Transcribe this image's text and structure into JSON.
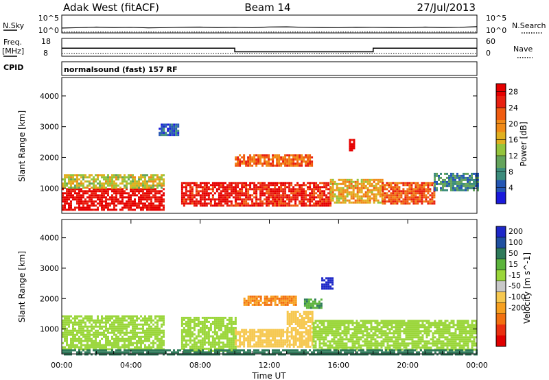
{
  "header": {
    "radar": "Adak West (fitACF)",
    "beam": "Beam 14",
    "date": "27/Jul/2013",
    "cpid": "normalsound (fast) 157 RF"
  },
  "labels": {
    "nsky": "N.Sky",
    "nsearch": "N.Search",
    "freq": "Freq.",
    "mhz": "[MHz]",
    "cpid": "CPID",
    "nave": "Nave",
    "ten5_left": "10^5",
    "ten0_left": "10^0",
    "ten5_right": "10^5",
    "ten0_right": "10^0",
    "freq_18": "18",
    "freq_8": "8",
    "nave_60": "60",
    "nave_0": "0"
  },
  "colors": {
    "power_scale": [
      "#1a1adc",
      "#2456b4",
      "#3c8c7c",
      "#64a45c",
      "#94c43c",
      "#e0b020",
      "#f08a18",
      "#f05c10",
      "#e82010",
      "#e60000"
    ],
    "velocity_scale": [
      "#1e28c8",
      "#2050a0",
      "#2e7a5a",
      "#5cb43c",
      "#9ad63a",
      "#c8c8c8",
      "#f6c850",
      "#f7a020",
      "#f27010",
      "#ea3010",
      "#e00000"
    ]
  },
  "chart_data": [
    {
      "type": "line",
      "panel": "nsky-nsearch",
      "ylabel_left": "N.Sky",
      "ylabel_right": "N.Search",
      "yscale": "log",
      "ylim": [
        1,
        100000
      ],
      "series": [
        {
          "name": "N.Sky",
          "values": [
            30,
            40,
            60,
            45,
            50,
            35,
            40,
            55,
            60,
            45,
            50,
            40,
            65,
            70,
            50,
            45,
            40,
            55,
            50,
            45,
            40,
            60,
            45,
            50,
            80
          ]
        },
        {
          "name": "N.Search",
          "values": [
            2,
            2,
            2,
            2,
            2,
            2,
            2,
            2,
            2,
            2,
            2,
            2,
            2,
            2,
            2,
            2,
            2,
            2,
            2,
            2,
            2,
            2,
            2,
            2,
            2
          ]
        }
      ],
      "x_hours": [
        0,
        1,
        2,
        3,
        4,
        5,
        6,
        7,
        8,
        9,
        10,
        11,
        12,
        13,
        14,
        15,
        16,
        17,
        18,
        19,
        20,
        21,
        22,
        23,
        24
      ]
    },
    {
      "type": "line",
      "panel": "freq-nave",
      "ylabel_left": "Freq. [MHz]",
      "ylabel_right": "Nave",
      "ylim_left": [
        8,
        18
      ],
      "ylim_right": [
        0,
        60
      ],
      "freq_steps": [
        {
          "start": 0,
          "end": 10,
          "value": 12.5
        },
        {
          "start": 10,
          "end": 18,
          "value": 10.5
        },
        {
          "start": 18,
          "end": 24,
          "value": 12.5
        }
      ],
      "nave_steps": [
        {
          "start": 0,
          "end": 24,
          "value": 10
        }
      ]
    },
    {
      "type": "heatmap",
      "panel": "power",
      "title": "",
      "xlabel": "",
      "ylabel": "Slant Range [km]",
      "yticks": [
        1000,
        2000,
        3000,
        4000
      ],
      "ylim": [
        180,
        4600
      ],
      "xlim": [
        0,
        24
      ],
      "colorbar_label": "Power [dB]",
      "colorbar_ticks": [
        4,
        8,
        12,
        16,
        20,
        24,
        28
      ],
      "colorbar_range": [
        0,
        30
      ],
      "blobs": [
        {
          "t0": 0.0,
          "t1": 5.9,
          "r0": 300,
          "r1": 1000,
          "value": 28
        },
        {
          "t0": 0.0,
          "t1": 5.9,
          "r0": 1000,
          "r1": 1450,
          "value": 15
        },
        {
          "t0": 6.9,
          "t1": 10.0,
          "r0": 400,
          "r1": 1200,
          "value": 27
        },
        {
          "t0": 10.0,
          "t1": 15.5,
          "r0": 400,
          "r1": 1200,
          "value": 26
        },
        {
          "t0": 10.0,
          "t1": 14.5,
          "r0": 1700,
          "r1": 2100,
          "value": 22
        },
        {
          "t0": 15.5,
          "t1": 18.5,
          "r0": 500,
          "r1": 1300,
          "value": 18
        },
        {
          "t0": 18.5,
          "t1": 21.5,
          "r0": 500,
          "r1": 1200,
          "value": 23
        },
        {
          "t0": 21.5,
          "t1": 24.0,
          "r0": 900,
          "r1": 1500,
          "value": 8
        },
        {
          "t0": 5.6,
          "t1": 6.7,
          "r0": 2700,
          "r1": 3100,
          "value": 5
        },
        {
          "t0": 16.6,
          "t1": 16.9,
          "r0": 2200,
          "r1": 2600,
          "value": 28
        }
      ]
    },
    {
      "type": "heatmap",
      "panel": "velocity",
      "title": "",
      "xlabel": "Time UT",
      "ylabel": "Slant Range [km]",
      "yticks": [
        1000,
        2000,
        3000,
        4000
      ],
      "ylim": [
        180,
        4600
      ],
      "xlim": [
        0,
        24
      ],
      "xticks": [
        "00:00",
        "04:00",
        "08:00",
        "12:00",
        "16:00",
        "20:00",
        "00:00"
      ],
      "colorbar_label": "Velocity [m s^-1]",
      "colorbar_ticks": [
        200,
        100,
        50,
        15,
        -15,
        -50,
        -100,
        -200
      ],
      "blobs": [
        {
          "t0": 0.0,
          "t1": 5.9,
          "r0": 300,
          "r1": 1450,
          "value": 0
        },
        {
          "t0": 6.9,
          "t1": 10.0,
          "r0": 300,
          "r1": 1400,
          "value": 0
        },
        {
          "t0": 10.0,
          "t1": 13.0,
          "r0": 400,
          "r1": 1000,
          "value": -60
        },
        {
          "t0": 13.0,
          "t1": 14.5,
          "r0": 400,
          "r1": 1600,
          "value": -70
        },
        {
          "t0": 14.5,
          "t1": 24.0,
          "r0": 300,
          "r1": 1300,
          "value": 0
        },
        {
          "t0": 10.5,
          "t1": 13.5,
          "r0": 1800,
          "r1": 2100,
          "value": -200
        },
        {
          "t0": 14.0,
          "t1": 15.0,
          "r0": 1700,
          "r1": 2000,
          "value": 50
        },
        {
          "t0": 15.0,
          "t1": 15.6,
          "r0": 2300,
          "r1": 2700,
          "value": 220
        },
        {
          "t0": 0.0,
          "t1": 24.0,
          "r0": 180,
          "r1": 330,
          "value": 60
        }
      ]
    }
  ]
}
